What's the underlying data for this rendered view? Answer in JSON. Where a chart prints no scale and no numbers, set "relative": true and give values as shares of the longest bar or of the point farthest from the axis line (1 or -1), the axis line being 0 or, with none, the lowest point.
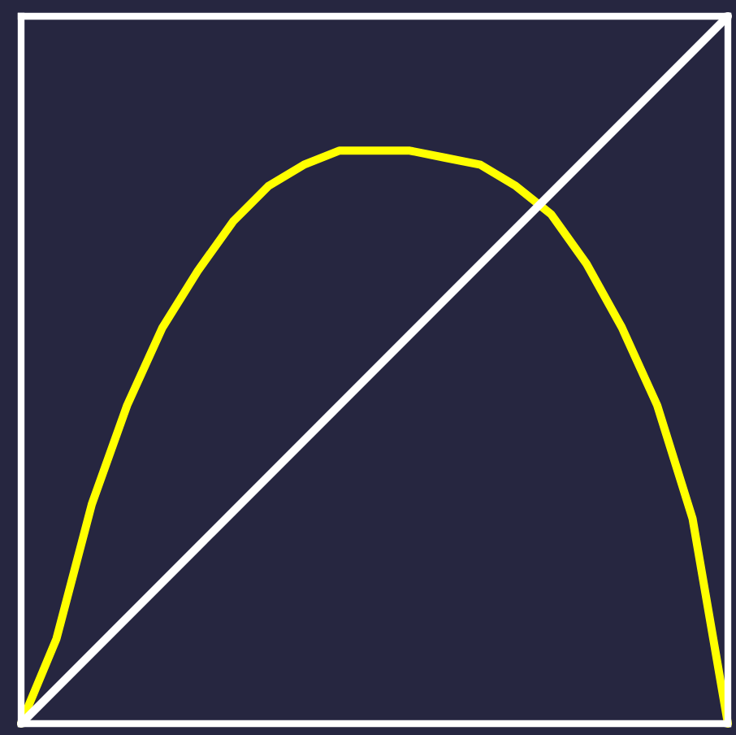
{
  "chart_data": {
    "type": "line",
    "relative": true,
    "categories": [
      null,
      null,
      null,
      null,
      null,
      null,
      null,
      null,
      null,
      null,
      null,
      null,
      null,
      null,
      null,
      null,
      null,
      null,
      null,
      null,
      null
    ],
    "series": [
      {
        "color": "#ffff00",
        "values": [
          0,
          0.12,
          0.31,
          0.45,
          0.56,
          0.64,
          0.71,
          0.76,
          0.79,
          0.81,
          0.81,
          0.81,
          0.8,
          0.79,
          0.76,
          0.72,
          0.65,
          0.56,
          0.45,
          0.29,
          0
        ]
      },
      {
        "color": "#ffffff",
        "values": [
          0,
          0.05,
          0.1,
          0.15,
          0.2,
          0.25,
          0.3,
          0.35,
          0.4,
          0.45,
          0.5,
          0.55,
          0.6,
          0.65,
          0.7,
          0.75,
          0.8,
          0.85,
          0.9,
          0.95,
          1
        ]
      }
    ]
  }
}
